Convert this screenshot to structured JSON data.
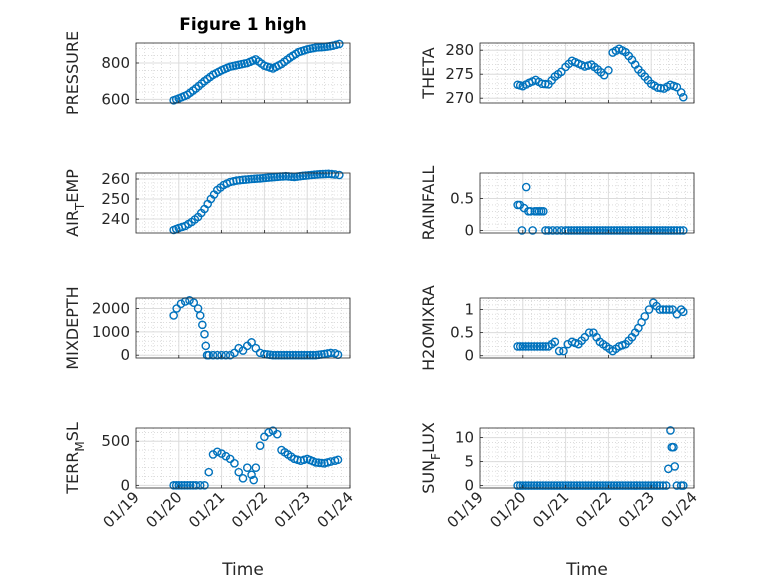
{
  "figure": {
    "title": "Figure 1 high",
    "marker_color": "#0072BD",
    "axis_color": "#262626",
    "grid_color": "#dcdcdc"
  },
  "chart_data": [
    {
      "type": "scatter",
      "position": "row-1-left",
      "title": "Figure 1 high",
      "ylabel": "PRESSURE",
      "ylabel_base": "PRESSURE",
      "ylabel_sub": "",
      "ylabel_tail": "",
      "xlabel": "",
      "xlim": [
        0,
        5
      ],
      "ylim": [
        580,
        910
      ],
      "yticks": [
        600,
        800
      ],
      "ytick_labels": [
        "600",
        "800"
      ],
      "xticks": [
        1,
        2,
        3,
        4,
        5
      ],
      "xtick_labels": [],
      "x": [
        0.88,
        1.0,
        1.2,
        1.4,
        1.6,
        1.8,
        2.0,
        2.2,
        2.4,
        2.6,
        2.8,
        3.0,
        3.2,
        3.4,
        3.6,
        3.8,
        4.0,
        4.2,
        4.4,
        4.6,
        4.75
      ],
      "y": [
        595,
        605,
        625,
        660,
        700,
        735,
        760,
        780,
        790,
        800,
        820,
        785,
        770,
        795,
        830,
        860,
        875,
        885,
        888,
        895,
        905
      ]
    },
    {
      "type": "scatter",
      "position": "row-1-right",
      "title": "",
      "ylabel": "THETA",
      "ylabel_base": "THETA",
      "ylabel_sub": "",
      "ylabel_tail": "",
      "xlabel": "",
      "xlim": [
        0,
        5
      ],
      "ylim": [
        269,
        281.5
      ],
      "yticks": [
        270,
        275,
        280
      ],
      "ytick_labels": [
        "270",
        "275",
        "280"
      ],
      "xticks": [
        1,
        2,
        3,
        4,
        5
      ],
      "xtick_labels": [],
      "x": [
        0.88,
        1.0,
        1.15,
        1.3,
        1.45,
        1.6,
        1.75,
        1.9,
        2.0,
        2.15,
        2.3,
        2.45,
        2.6,
        2.75,
        2.9,
        3.0,
        3.1,
        3.25,
        3.4,
        3.55,
        3.7,
        3.85,
        4.0,
        4.15,
        4.3,
        4.45,
        4.6,
        4.7,
        4.75
      ],
      "y": [
        272.8,
        272.5,
        273.2,
        273.8,
        273.0,
        272.9,
        274.5,
        275.5,
        276.5,
        277.8,
        277.2,
        276.6,
        277.0,
        276.0,
        274.8,
        275.8,
        279.5,
        280.3,
        279.6,
        278.0,
        276.0,
        274.5,
        273.0,
        272.2,
        272.0,
        272.8,
        272.3,
        271.2,
        270.2
      ]
    },
    {
      "type": "scatter",
      "position": "row-2-left",
      "title": "",
      "ylabel": "AIR_TEMP",
      "ylabel_base": "AIR",
      "ylabel_sub": "T",
      "ylabel_tail": "EMP",
      "xlabel": "",
      "xlim": [
        0,
        5
      ],
      "ylim": [
        233,
        263
      ],
      "yticks": [
        240,
        250,
        260
      ],
      "ytick_labels": [
        "240",
        "250",
        "260"
      ],
      "xticks": [
        1,
        2,
        3,
        4,
        5
      ],
      "xtick_labels": [],
      "x": [
        0.88,
        1.0,
        1.15,
        1.3,
        1.45,
        1.6,
        1.75,
        1.9,
        2.05,
        2.2,
        2.35,
        2.5,
        2.7,
        2.9,
        3.1,
        3.3,
        3.5,
        3.7,
        3.9,
        4.1,
        4.3,
        4.5,
        4.65,
        4.75
      ],
      "y": [
        234.5,
        235.5,
        236.5,
        238.5,
        241.0,
        245.0,
        250.0,
        254.5,
        257.0,
        258.5,
        259.2,
        259.6,
        260.0,
        260.3,
        260.7,
        261.1,
        261.4,
        261.0,
        261.6,
        262.0,
        262.4,
        262.6,
        262.3,
        262.0
      ]
    },
    {
      "type": "scatter",
      "position": "row-2-right",
      "title": "",
      "ylabel": "RAINFALL",
      "ylabel_base": "RAINFALL",
      "ylabel_sub": "",
      "ylabel_tail": "",
      "xlabel": "",
      "xlim": [
        0,
        5
      ],
      "ylim": [
        -0.04,
        0.9
      ],
      "yticks": [
        0,
        0.5
      ],
      "ytick_labels": [
        "0",
        "0.5"
      ],
      "xticks": [
        1,
        2,
        3,
        4,
        5
      ],
      "xtick_labels": [],
      "x": [
        0.88,
        0.93,
        0.98,
        1.03,
        1.08,
        1.13,
        1.18,
        1.23,
        1.28,
        1.33,
        1.38,
        1.43,
        1.48,
        1.53,
        1.6,
        1.7,
        1.8,
        1.9,
        2.0,
        2.2,
        2.4,
        2.6,
        2.8,
        3.0,
        3.2,
        3.4,
        3.6,
        3.8,
        4.0,
        4.2,
        4.4,
        4.6,
        4.75
      ],
      "y": [
        0.4,
        0.4,
        0.0,
        0.35,
        0.68,
        0.3,
        0.3,
        0.0,
        0.3,
        0.3,
        0.3,
        0.3,
        0.3,
        0.0,
        0,
        0,
        0,
        0,
        0,
        0,
        0,
        0,
        0,
        0,
        0,
        0,
        0,
        0,
        0,
        0,
        0,
        0,
        0
      ]
    },
    {
      "type": "scatter",
      "position": "row-3-left",
      "title": "",
      "ylabel": "MIXDEPTH",
      "ylabel_base": "MIXDEPTH",
      "ylabel_sub": "",
      "ylabel_tail": "",
      "xlabel": "",
      "xlim": [
        0,
        5
      ],
      "ylim": [
        -120,
        2450
      ],
      "yticks": [
        0,
        1000,
        2000
      ],
      "ytick_labels": [
        "0",
        "1000",
        "2000"
      ],
      "xticks": [
        1,
        2,
        3,
        4,
        5
      ],
      "xtick_labels": [],
      "x": [
        0.88,
        0.95,
        1.05,
        1.15,
        1.25,
        1.35,
        1.45,
        1.5,
        1.55,
        1.6,
        1.63,
        1.66,
        1.7,
        1.8,
        1.9,
        2.0,
        2.1,
        2.2,
        2.3,
        2.4,
        2.5,
        2.6,
        2.7,
        2.8,
        2.9,
        3.0,
        3.2,
        3.4,
        3.6,
        3.8,
        4.0,
        4.2,
        4.4,
        4.55,
        4.65,
        4.72
      ],
      "y": [
        1700,
        2000,
        2200,
        2300,
        2350,
        2250,
        2000,
        1700,
        1300,
        900,
        400,
        0,
        0,
        0,
        0,
        0,
        0,
        0,
        100,
        300,
        200,
        400,
        550,
        300,
        100,
        50,
        0,
        0,
        0,
        0,
        0,
        0,
        50,
        100,
        80,
        20
      ]
    },
    {
      "type": "scatter",
      "position": "row-3-right",
      "title": "",
      "ylabel": "H2OMIXRA",
      "ylabel_base": "H2OMIXRA",
      "ylabel_sub": "",
      "ylabel_tail": "",
      "xlabel": "",
      "xlim": [
        0,
        5
      ],
      "ylim": [
        -0.05,
        1.25
      ],
      "yticks": [
        0,
        0.5,
        1
      ],
      "ytick_labels": [
        "0",
        "0.5",
        "1"
      ],
      "xticks": [
        1,
        2,
        3,
        4,
        5
      ],
      "xtick_labels": [],
      "x": [
        0.88,
        1.0,
        1.2,
        1.4,
        1.6,
        1.75,
        1.85,
        1.95,
        2.05,
        2.15,
        2.3,
        2.45,
        2.55,
        2.65,
        2.8,
        2.95,
        3.1,
        3.25,
        3.4,
        3.55,
        3.7,
        3.85,
        3.95,
        4.05,
        4.2,
        4.35,
        4.5,
        4.6,
        4.7,
        4.75
      ],
      "y": [
        0.2,
        0.2,
        0.2,
        0.2,
        0.2,
        0.3,
        0.1,
        0.1,
        0.25,
        0.3,
        0.25,
        0.4,
        0.5,
        0.5,
        0.3,
        0.2,
        0.1,
        0.2,
        0.25,
        0.4,
        0.6,
        0.85,
        1.0,
        1.15,
        1.0,
        1.0,
        1.0,
        0.9,
        1.0,
        0.95
      ]
    },
    {
      "type": "scatter",
      "position": "row-4-left",
      "title": "",
      "ylabel": "TERR_MSL",
      "ylabel_base": "TERR",
      "ylabel_sub": "M",
      "ylabel_tail": "SL",
      "xlabel": "Time",
      "xlim": [
        0,
        5
      ],
      "ylim": [
        -30,
        650
      ],
      "yticks": [
        0,
        500
      ],
      "ytick_labels": [
        "0",
        "500"
      ],
      "xticks": [
        1,
        2,
        3,
        4,
        5
      ],
      "xtick_labels": [
        "01/20",
        "01/21",
        "01/22",
        "01/23",
        "01/24"
      ],
      "x_first_label": "01/19",
      "x": [
        0.88,
        1.0,
        1.2,
        1.4,
        1.5,
        1.6,
        1.7,
        1.8,
        1.9,
        2.0,
        2.1,
        2.2,
        2.3,
        2.4,
        2.5,
        2.6,
        2.7,
        2.75,
        2.8,
        2.9,
        3.0,
        3.1,
        3.2,
        3.3,
        3.4,
        3.55,
        3.7,
        3.85,
        4.0,
        4.2,
        4.4,
        4.55,
        4.65,
        4.72
      ],
      "y": [
        0,
        0,
        0,
        0,
        0,
        0,
        150,
        350,
        380,
        360,
        330,
        300,
        250,
        150,
        80,
        200,
        120,
        60,
        200,
        450,
        550,
        600,
        620,
        580,
        400,
        350,
        300,
        280,
        300,
        260,
        250,
        270,
        280,
        290
      ]
    },
    {
      "type": "scatter",
      "position": "row-4-right",
      "title": "",
      "ylabel": "SUN_FLUX",
      "ylabel_base": "SUN",
      "ylabel_sub": "F",
      "ylabel_tail": "LUX",
      "xlabel": "Time",
      "xlim": [
        0,
        5
      ],
      "ylim": [
        -0.5,
        12
      ],
      "yticks": [
        0,
        5,
        10
      ],
      "ytick_labels": [
        "0",
        "5",
        "10"
      ],
      "xticks": [
        1,
        2,
        3,
        4,
        5
      ],
      "xtick_labels": [
        "01/20",
        "01/21",
        "01/22",
        "01/23",
        "01/24"
      ],
      "x_first_label": "01/19",
      "x": [
        0.88,
        1.0,
        1.2,
        1.4,
        1.6,
        1.8,
        2.0,
        2.2,
        2.4,
        2.6,
        2.8,
        3.0,
        3.2,
        3.4,
        3.6,
        3.8,
        4.0,
        4.2,
        4.35,
        4.4,
        4.45,
        4.48,
        4.52,
        4.55,
        4.6,
        4.7,
        4.75
      ],
      "y": [
        0,
        0,
        0,
        0,
        0,
        0,
        0,
        0,
        0,
        0,
        0,
        0,
        0,
        0,
        0,
        0,
        0,
        0,
        0,
        3.5,
        11.5,
        8.0,
        8.0,
        4.0,
        0,
        0,
        0
      ]
    }
  ]
}
